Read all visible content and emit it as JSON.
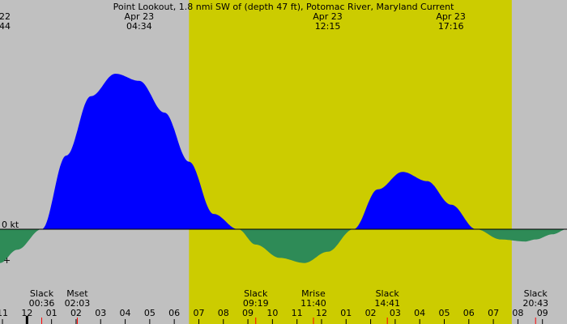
{
  "chart_data": {
    "type": "area",
    "title": "Point Lookout, 1.8 nmi SW of (depth 47 ft), Potomac River, Maryland Current",
    "ylabel": "",
    "xlabel": "",
    "zero_label": "0 kt",
    "x_unit": "hours",
    "xlim": [
      22.9,
      46.0
    ],
    "ylim": [
      -1.0,
      1.5
    ],
    "grid": false,
    "legend": "none",
    "series": [
      {
        "values_hours": [
          22.9,
          23.6,
          24.6,
          25.6,
          26.6,
          27.6,
          28.57,
          29.6,
          30.6,
          31.6,
          32.6,
          33.32,
          34.3,
          35.3,
          36.25,
          37.3,
          38.3,
          39.3,
          40.3,
          41.28,
          42.3,
          43.3,
          44.3,
          44.72,
          45.4,
          46.0
        ],
        "values_kt": [
          -0.33,
          -0.2,
          0.0,
          0.72,
          1.3,
          1.52,
          1.45,
          1.14,
          0.66,
          0.15,
          0.0,
          -0.15,
          -0.28,
          -0.33,
          -0.22,
          0.0,
          0.39,
          0.56,
          0.47,
          0.24,
          0.0,
          -0.1,
          -0.12,
          -0.1,
          -0.05,
          0.0
        ]
      }
    ],
    "top_labels": [
      {
        "hour": 22.9,
        "line1": "22",
        "line2": "44"
      },
      {
        "hour": 28.57,
        "line1": "Apr 23",
        "line2": "04:34"
      },
      {
        "hour": 36.25,
        "line1": "Apr 23",
        "line2": "12:15"
      },
      {
        "hour": 41.27,
        "line1": "Apr 23",
        "line2": "17:16"
      }
    ],
    "events": [
      {
        "hour": 24.6,
        "label": "Slack",
        "time": "00:36"
      },
      {
        "hour": 26.05,
        "label": "Mset",
        "time": "02:03"
      },
      {
        "hour": 33.32,
        "label": "Slack",
        "time": "09:19"
      },
      {
        "hour": 35.67,
        "label": "Mrise",
        "time": "11:40"
      },
      {
        "hour": 38.68,
        "label": "Slack",
        "time": "14:41"
      },
      {
        "hour": 44.72,
        "label": "Slack",
        "time": "20:43"
      }
    ],
    "ticks": [
      {
        "hour": 23,
        "label": "11"
      },
      {
        "hour": 24,
        "label": "12"
      },
      {
        "hour": 25,
        "label": "01"
      },
      {
        "hour": 26,
        "label": "02"
      },
      {
        "hour": 27,
        "label": "03"
      },
      {
        "hour": 28,
        "label": "04"
      },
      {
        "hour": 29,
        "label": "05"
      },
      {
        "hour": 30,
        "label": "06"
      },
      {
        "hour": 31,
        "label": "07"
      },
      {
        "hour": 32,
        "label": "08"
      },
      {
        "hour": 33,
        "label": "09"
      },
      {
        "hour": 34,
        "label": "10"
      },
      {
        "hour": 35,
        "label": "11"
      },
      {
        "hour": 36,
        "label": "12"
      },
      {
        "hour": 37,
        "label": "01"
      },
      {
        "hour": 38,
        "label": "02"
      },
      {
        "hour": 39,
        "label": "03"
      },
      {
        "hour": 40,
        "label": "04"
      },
      {
        "hour": 41,
        "label": "05"
      },
      {
        "hour": 42,
        "label": "06"
      },
      {
        "hour": 43,
        "label": "07"
      },
      {
        "hour": 44,
        "label": "08"
      },
      {
        "hour": 45,
        "label": "09"
      }
    ],
    "daylight_hours": [
      30.6,
      43.75
    ],
    "colors": {
      "night": "#c0c0c0",
      "day": "#cccc00",
      "flood": "#0000ff",
      "ebb": "#2e8b57",
      "midnight_tick": "#000000",
      "event_tick": "#ff0000"
    }
  }
}
